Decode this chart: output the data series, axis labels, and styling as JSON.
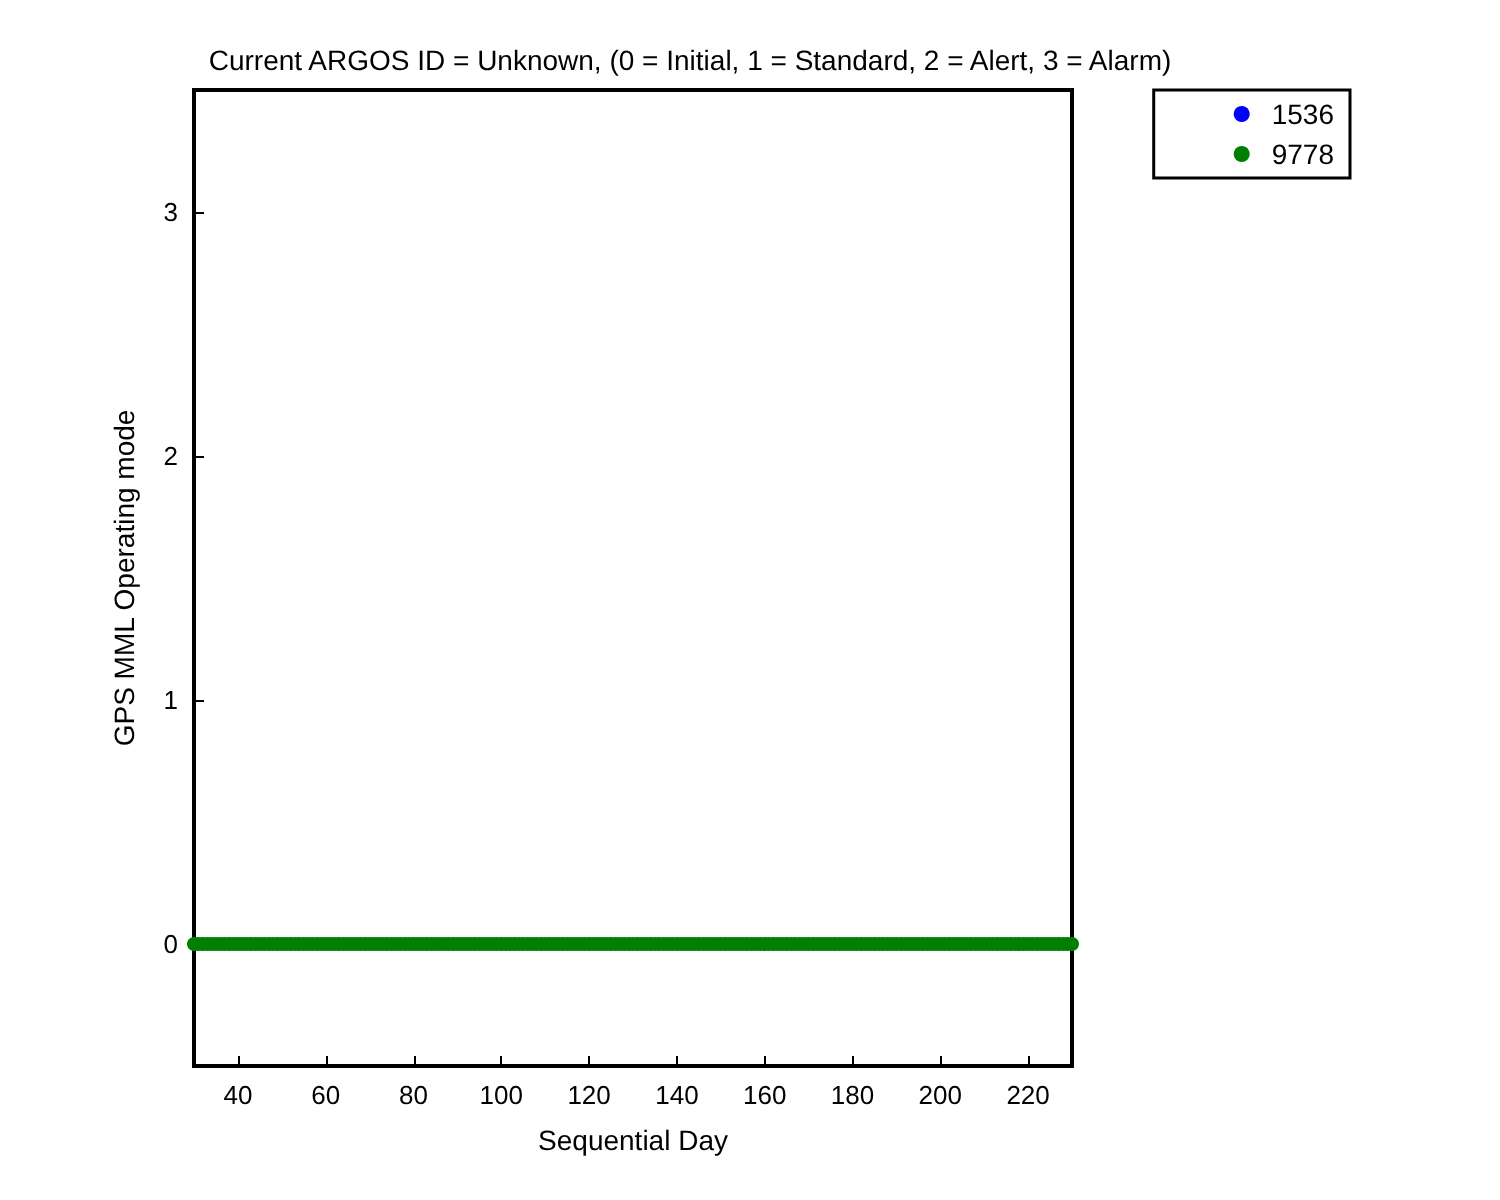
{
  "chart_data": {
    "type": "scatter",
    "title": "Current ARGOS ID = Unknown, (0 = Initial, 1 = Standard, 2 = Alert, 3 = Alarm)",
    "xlabel": "Sequential Day",
    "ylabel": "GPS MML Operating mode",
    "x": [
      30,
      31,
      32,
      33,
      34,
      35,
      36,
      37,
      38,
      39,
      40,
      41,
      42,
      43,
      44,
      45,
      46,
      47,
      48,
      49,
      50,
      51,
      52,
      53,
      54,
      55,
      56,
      57,
      58,
      59,
      60,
      61,
      62,
      63,
      64,
      65,
      66,
      67,
      68,
      69,
      70,
      71,
      72,
      73,
      74,
      75,
      76,
      77,
      78,
      79,
      80,
      81,
      82,
      83,
      84,
      85,
      86,
      87,
      88,
      89,
      90,
      91,
      92,
      93,
      94,
      95,
      96,
      97,
      98,
      99,
      100,
      101,
      102,
      103,
      104,
      105,
      106,
      107,
      108,
      109,
      110,
      111,
      112,
      113,
      114,
      115,
      116,
      117,
      118,
      119,
      120,
      121,
      122,
      123,
      124,
      125,
      126,
      127,
      128,
      129,
      130,
      131,
      132,
      133,
      134,
      135,
      136,
      137,
      138,
      139,
      140,
      141,
      142,
      143,
      144,
      145,
      146,
      147,
      148,
      149,
      150,
      151,
      152,
      153,
      154,
      155,
      156,
      157,
      158,
      159,
      160,
      161,
      162,
      163,
      164,
      165,
      166,
      167,
      168,
      169,
      170,
      171,
      172,
      173,
      174,
      175,
      176,
      177,
      178,
      179,
      180,
      181,
      182,
      183,
      184,
      185,
      186,
      187,
      188,
      189,
      190,
      191,
      192,
      193,
      194,
      195,
      196,
      197,
      198,
      199,
      200,
      201,
      202,
      203,
      204,
      205,
      206,
      207,
      208,
      209,
      210,
      211,
      212,
      213,
      214,
      215,
      216,
      217,
      218,
      219,
      220,
      221,
      222,
      223,
      224,
      225,
      226,
      227,
      228,
      229,
      230
    ],
    "series": [
      {
        "name": "1536",
        "color": "#0000ff",
        "values": [
          null,
          null,
          null,
          null,
          null,
          null,
          null,
          null,
          null,
          null,
          null,
          null,
          null,
          null,
          null,
          null,
          null,
          null,
          null,
          null,
          null,
          null,
          null,
          null,
          null,
          null,
          null,
          null,
          null,
          null,
          null,
          null,
          null,
          null,
          null,
          null,
          null,
          null,
          null,
          null,
          null,
          null,
          null,
          null,
          null,
          null,
          null,
          null,
          null,
          null,
          null,
          null,
          null,
          null,
          null,
          null,
          null,
          null,
          null,
          null,
          null,
          null,
          null,
          null,
          null,
          null,
          null,
          null,
          null,
          null,
          null,
          null,
          null,
          null,
          null,
          null,
          null,
          null,
          null,
          null,
          null,
          null,
          null,
          null,
          null,
          null,
          null,
          null,
          null,
          null,
          null,
          null,
          null,
          null,
          null,
          null,
          null,
          null,
          null,
          null,
          null,
          null,
          null,
          null,
          null,
          null,
          null,
          null,
          null,
          null,
          null,
          null,
          null,
          null,
          null,
          null,
          null,
          null,
          null,
          null,
          null,
          null,
          null,
          null,
          null,
          null,
          null,
          null,
          null,
          null,
          null,
          null,
          null,
          null,
          null,
          null,
          null,
          null,
          null,
          null,
          null,
          null,
          null,
          null,
          null,
          null,
          null,
          null,
          null,
          null,
          null,
          null,
          null,
          null,
          null,
          null,
          null,
          null,
          null,
          null,
          null,
          null,
          null,
          null,
          null,
          null,
          null,
          null,
          null,
          null,
          null,
          null,
          null,
          null,
          null,
          null,
          null,
          null,
          null,
          null,
          null,
          null,
          null,
          null,
          null,
          null,
          null,
          null,
          null,
          null,
          null,
          null,
          null,
          null,
          null,
          null,
          null,
          null,
          null,
          null,
          null
        ]
      },
      {
        "name": "9778",
        "color": "#008000",
        "values": [
          0,
          0,
          0,
          0,
          0,
          0,
          0,
          0,
          0,
          0,
          0,
          0,
          0,
          0,
          0,
          0,
          0,
          0,
          0,
          0,
          0,
          0,
          0,
          0,
          0,
          0,
          0,
          0,
          0,
          0,
          0,
          0,
          0,
          0,
          0,
          0,
          0,
          0,
          0,
          0,
          0,
          0,
          0,
          0,
          0,
          0,
          0,
          0,
          0,
          0,
          0,
          0,
          0,
          0,
          0,
          0,
          0,
          0,
          0,
          0,
          0,
          0,
          0,
          0,
          0,
          0,
          0,
          0,
          0,
          0,
          0,
          0,
          0,
          0,
          0,
          0,
          0,
          0,
          0,
          0,
          0,
          0,
          0,
          0,
          0,
          0,
          0,
          0,
          0,
          0,
          0,
          0,
          0,
          0,
          0,
          0,
          0,
          0,
          0,
          0,
          0,
          0,
          0,
          0,
          0,
          0,
          0,
          0,
          0,
          0,
          0,
          0,
          0,
          0,
          0,
          0,
          0,
          0,
          0,
          0,
          0,
          0,
          0,
          0,
          0,
          0,
          0,
          0,
          0,
          0,
          0,
          0,
          0,
          0,
          0,
          0,
          0,
          0,
          0,
          0,
          0,
          0,
          0,
          0,
          0,
          0,
          0,
          0,
          0,
          0,
          0,
          0,
          0,
          0,
          0,
          0,
          0,
          0,
          0,
          0,
          0,
          0,
          0,
          0,
          0,
          0,
          0,
          0,
          0,
          0,
          0,
          0,
          0,
          0,
          0,
          0,
          0,
          0,
          0,
          0,
          0,
          0,
          0,
          0,
          0,
          0,
          0,
          0,
          0,
          0,
          0,
          0,
          0,
          0,
          0,
          0,
          0,
          0,
          0,
          0,
          0
        ]
      }
    ],
    "xlim": [
      30,
      230
    ],
    "xticks": [
      40,
      60,
      80,
      100,
      120,
      140,
      160,
      180,
      200,
      220
    ],
    "ylim": [
      -0.5,
      3.5
    ],
    "yticks": [
      0,
      1,
      2,
      3
    ],
    "grid": false,
    "legend": "top right",
    "marker": "circle"
  }
}
